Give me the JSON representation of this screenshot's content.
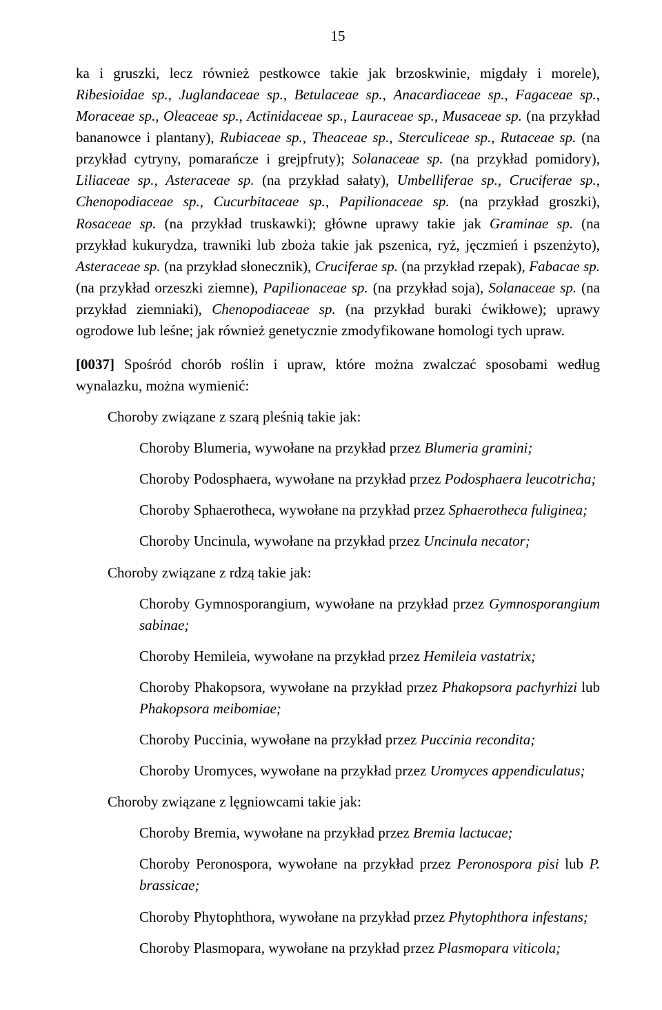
{
  "pageNumber": "15",
  "body": [
    {
      "type": "p",
      "cls": "para",
      "html": "ka i gruszki, lecz również pestkowce takie jak brzoskwinie, migdały i morele), <em>Ribesioidae sp.</em>, <em>Juglandaceae sp.</em>, <em>Betulaceae sp.</em>, <em>Anacardiaceae sp.</em>, <em>Fagaceae sp.</em>, <em>Moraceae sp.</em>, <em>Oleaceae sp.</em>, <em>Actinidaceae sp.</em>, <em>Lauraceae sp.</em>, <em>Musaceae sp.</em> (na przykład bananowce i plantany), <em>Rubiaceae sp.</em>, <em>Theaceae sp.</em>, <em>Sterculiceae sp.</em>, <em>Rutaceae sp.</em> (na przykład cytryny, pomarańcze i grejpfruty); <em>Solanaceae sp.</em> (na przykład pomidory), <em>Liliaceae sp.</em>, <em>Asteraceae sp.</em> (na przykład sałaty), <em>Umbelliferae sp.</em>, <em>Cruciferae sp.</em>, <em>Chenopodiaceae sp.</em>, <em>Cucurbitaceae sp.</em>, <em>Papilionaceae sp.</em> (na przykład groszki), <em>Rosaceae sp.</em> (na przykład truskawki); główne uprawy takie jak <em>Graminae sp.</em> (na przykład kukurydza, trawniki lub zboża takie jak pszenica, ryż, jęczmień i pszenżyto), <em>Asteraceae sp.</em> (na przykład słonecznik), <em>Cruciferae sp.</em> (na przykład rzepak), <em>Fabacae sp.</em> (na przykład orzeszki ziemne), <em>Papilionaceae sp.</em> (na przykład soja), <em>Solanaceae sp.</em> (na przykład ziemniaki), <em>Chenopodiaceae sp.</em> (na przykład buraki ćwikłowe); uprawy ogrodowe lub leśne; jak również genetycznie zmodyfikowane homologi tych upraw."
    },
    {
      "type": "p",
      "cls": "para intro",
      "html": "<strong>[0037]</strong> Spośród chorób roślin i upraw, które można zwalczać sposobami według wynalazku, można wymienić:"
    },
    {
      "type": "p",
      "cls": "para sub",
      "html": "Choroby związane z szarą pleśnią takie jak:"
    },
    {
      "type": "p",
      "cls": "para subsub",
      "html": "Choroby Blumeria, wywołane na przykład przez <em>Blumeria gramini;</em>"
    },
    {
      "type": "p",
      "cls": "para subsub",
      "html": "Choroby Podosphaera, wywołane na przykład przez <em>Podosphaera leucotricha;</em>"
    },
    {
      "type": "p",
      "cls": "para subsub",
      "html": "Choroby Sphaerotheca, wywołane na przykład przez <em>Sphaerotheca fuliginea;</em>"
    },
    {
      "type": "p",
      "cls": "para subsub",
      "html": "Choroby Uncinula, wywołane na przykład przez <em>Uncinula necator;</em>"
    },
    {
      "type": "p",
      "cls": "para sub",
      "html": "Choroby związane z rdzą takie jak:"
    },
    {
      "type": "p",
      "cls": "para subsub",
      "html": "Choroby Gymnosporangium, wywołane na przykład przez <em>Gymnosporangium sabinae;</em>"
    },
    {
      "type": "p",
      "cls": "para subsub",
      "html": "Choroby Hemileia, wywołane na przykład przez <em>Hemileia vastatrix;</em>"
    },
    {
      "type": "p",
      "cls": "para subsub",
      "html": "Choroby Phakopsora, wywołane na przykład przez <em>Phakopsora pachyrhizi</em> lub <em>Phakopsora meibomiae;</em>"
    },
    {
      "type": "p",
      "cls": "para subsub",
      "html": "Choroby Puccinia, wywołane na przykład przez <em>Puccinia recondita;</em>"
    },
    {
      "type": "p",
      "cls": "para subsub",
      "html": "Choroby Uromyces, wywołane na przykład przez <em>Uromyces appendiculatus;</em>"
    },
    {
      "type": "p",
      "cls": "para sub",
      "html": "Choroby związane z lęgniowcami takie jak:"
    },
    {
      "type": "p",
      "cls": "para subsub",
      "html": "Choroby Bremia, wywołane na przykład przez <em>Bremia lactucae;</em>"
    },
    {
      "type": "p",
      "cls": "para subsub",
      "html": "Choroby Peronospora, wywołane na przykład przez <em>Peronospora pisi</em> lub <em>P. brassicae;</em>"
    },
    {
      "type": "p",
      "cls": "para subsub",
      "html": "Choroby Phytophthora, wywołane na przykład przez <em>Phytophthora infestans;</em>"
    },
    {
      "type": "p",
      "cls": "para subsub",
      "html": "Choroby Plasmopara, wywołane na przykład przez <em>Plasmopara viticola;</em>"
    }
  ]
}
